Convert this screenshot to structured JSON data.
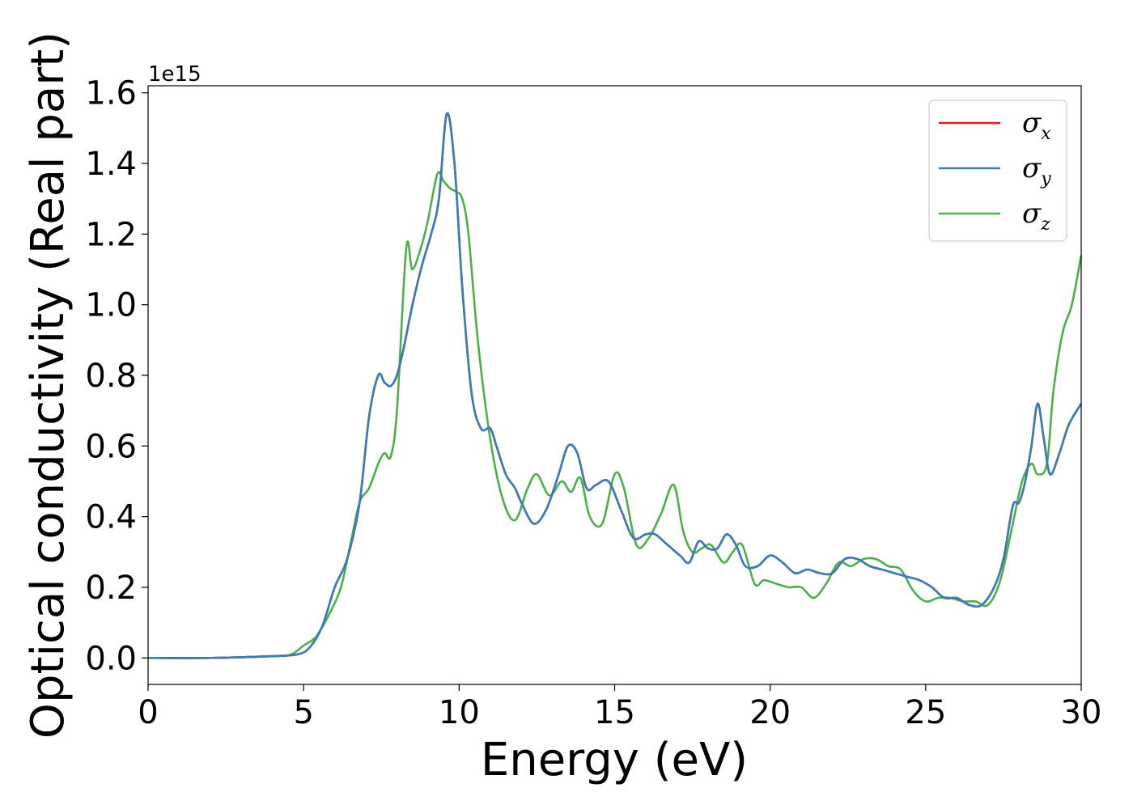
{
  "chart_data": {
    "type": "line",
    "xlabel": "Energy (eV)",
    "ylabel": "Optical conductivity (Real part)",
    "y_offset_text": "1e15",
    "y_multiplier": 1000000000000000.0,
    "xlim": [
      0,
      30
    ],
    "ylim": [
      -0.075,
      1.62
    ],
    "x_ticks": [
      0,
      5,
      10,
      15,
      20,
      25,
      30
    ],
    "x_tick_labels": [
      "0",
      "5",
      "10",
      "15",
      "20",
      "25",
      "30"
    ],
    "y_ticks": [
      0.0,
      0.2,
      0.4,
      0.6,
      0.8,
      1.0,
      1.2,
      1.4,
      1.6
    ],
    "y_tick_labels": [
      "0.0",
      "0.2",
      "0.4",
      "0.6",
      "0.8",
      "1.0",
      "1.2",
      "1.4",
      "1.6"
    ],
    "grid": false,
    "legend_position": "top-right",
    "series": [
      {
        "name": "σx",
        "symbol": "σ",
        "subscript": "x",
        "color": "#e41a1c",
        "x": [
          0,
          2,
          4,
          4.8,
          5.2,
          5.6,
          6.0,
          6.4,
          6.8,
          7.1,
          7.4,
          7.6,
          7.8,
          8.0,
          8.2,
          8.5,
          8.8,
          9.1,
          9.35,
          9.6,
          9.85,
          10.1,
          10.4,
          10.7,
          11.0,
          11.2,
          11.5,
          11.8,
          12.0,
          12.4,
          12.8,
          13.2,
          13.5,
          13.8,
          14.1,
          14.4,
          14.8,
          15.2,
          15.6,
          16.0,
          16.3,
          16.7,
          17.1,
          17.4,
          17.7,
          18.0,
          18.3,
          18.6,
          18.9,
          19.2,
          19.6,
          20.0,
          20.4,
          20.8,
          21.2,
          21.6,
          22.0,
          22.4,
          22.8,
          23.2,
          23.6,
          24.0,
          24.4,
          24.8,
          25.2,
          25.6,
          26.0,
          26.4,
          26.8,
          27.2,
          27.5,
          27.8,
          28.0,
          28.2,
          28.4,
          28.6,
          28.8,
          29.0,
          29.3,
          29.6,
          30.0
        ],
        "y": [
          0.0,
          0.0,
          0.005,
          0.01,
          0.03,
          0.09,
          0.2,
          0.28,
          0.44,
          0.68,
          0.8,
          0.78,
          0.77,
          0.8,
          0.87,
          1.0,
          1.11,
          1.2,
          1.3,
          1.54,
          1.4,
          1.05,
          0.75,
          0.65,
          0.65,
          0.6,
          0.52,
          0.48,
          0.44,
          0.38,
          0.42,
          0.52,
          0.6,
          0.58,
          0.48,
          0.49,
          0.5,
          0.42,
          0.34,
          0.35,
          0.35,
          0.32,
          0.29,
          0.27,
          0.33,
          0.31,
          0.31,
          0.35,
          0.32,
          0.26,
          0.26,
          0.29,
          0.27,
          0.24,
          0.25,
          0.24,
          0.24,
          0.28,
          0.28,
          0.26,
          0.25,
          0.24,
          0.23,
          0.22,
          0.2,
          0.17,
          0.17,
          0.15,
          0.15,
          0.2,
          0.28,
          0.43,
          0.44,
          0.5,
          0.6,
          0.72,
          0.62,
          0.52,
          0.58,
          0.66,
          0.72
        ]
      },
      {
        "name": "σy",
        "symbol": "σ",
        "subscript": "y",
        "color": "#377eb8",
        "x": [
          0,
          2,
          4,
          4.8,
          5.2,
          5.6,
          6.0,
          6.4,
          6.8,
          7.1,
          7.4,
          7.6,
          7.8,
          8.0,
          8.2,
          8.5,
          8.8,
          9.1,
          9.35,
          9.6,
          9.85,
          10.1,
          10.4,
          10.7,
          11.0,
          11.2,
          11.5,
          11.8,
          12.0,
          12.4,
          12.8,
          13.2,
          13.5,
          13.8,
          14.1,
          14.4,
          14.8,
          15.2,
          15.6,
          16.0,
          16.3,
          16.7,
          17.1,
          17.4,
          17.7,
          18.0,
          18.3,
          18.6,
          18.9,
          19.2,
          19.6,
          20.0,
          20.4,
          20.8,
          21.2,
          21.6,
          22.0,
          22.4,
          22.8,
          23.2,
          23.6,
          24.0,
          24.4,
          24.8,
          25.2,
          25.6,
          26.0,
          26.4,
          26.8,
          27.2,
          27.5,
          27.8,
          28.0,
          28.2,
          28.4,
          28.6,
          28.8,
          29.0,
          29.3,
          29.6,
          30.0
        ],
        "y": [
          0.0,
          0.0,
          0.005,
          0.01,
          0.03,
          0.09,
          0.2,
          0.28,
          0.44,
          0.68,
          0.8,
          0.78,
          0.77,
          0.8,
          0.87,
          1.0,
          1.11,
          1.2,
          1.3,
          1.54,
          1.4,
          1.05,
          0.75,
          0.65,
          0.65,
          0.6,
          0.52,
          0.48,
          0.44,
          0.38,
          0.42,
          0.52,
          0.6,
          0.58,
          0.48,
          0.49,
          0.5,
          0.42,
          0.34,
          0.35,
          0.35,
          0.32,
          0.29,
          0.27,
          0.33,
          0.31,
          0.31,
          0.35,
          0.32,
          0.26,
          0.26,
          0.29,
          0.27,
          0.24,
          0.25,
          0.24,
          0.24,
          0.28,
          0.28,
          0.26,
          0.25,
          0.24,
          0.23,
          0.22,
          0.2,
          0.17,
          0.17,
          0.15,
          0.15,
          0.2,
          0.28,
          0.43,
          0.44,
          0.5,
          0.6,
          0.72,
          0.62,
          0.52,
          0.58,
          0.66,
          0.72
        ]
      },
      {
        "name": "σz",
        "symbol": "σ",
        "subscript": "z",
        "color": "#4daf4a",
        "x": [
          0,
          2,
          4,
          4.6,
          5.0,
          5.4,
          5.8,
          6.2,
          6.5,
          6.8,
          7.1,
          7.4,
          7.6,
          7.8,
          8.0,
          8.3,
          8.5,
          8.8,
          9.0,
          9.3,
          9.5,
          9.7,
          9.9,
          10.1,
          10.3,
          10.6,
          11.0,
          11.4,
          11.8,
          12.2,
          12.5,
          12.9,
          13.3,
          13.6,
          13.9,
          14.2,
          14.6,
          15.0,
          15.3,
          15.7,
          16.1,
          16.5,
          16.9,
          17.2,
          17.5,
          17.8,
          18.1,
          18.5,
          18.8,
          19.1,
          19.5,
          19.8,
          20.2,
          20.6,
          21.0,
          21.4,
          21.8,
          22.2,
          22.6,
          23.0,
          23.4,
          23.8,
          24.2,
          24.6,
          25.0,
          25.4,
          25.8,
          26.2,
          26.6,
          27.0,
          27.4,
          27.8,
          28.1,
          28.4,
          28.6,
          28.9,
          29.1,
          29.4,
          29.7,
          30.0
        ],
        "y": [
          0.0,
          0.0,
          0.005,
          0.01,
          0.035,
          0.06,
          0.12,
          0.2,
          0.32,
          0.44,
          0.48,
          0.55,
          0.58,
          0.57,
          0.7,
          1.16,
          1.1,
          1.17,
          1.24,
          1.37,
          1.35,
          1.33,
          1.32,
          1.3,
          1.2,
          0.9,
          0.62,
          0.45,
          0.39,
          0.48,
          0.52,
          0.46,
          0.5,
          0.47,
          0.51,
          0.4,
          0.38,
          0.52,
          0.48,
          0.32,
          0.34,
          0.41,
          0.49,
          0.36,
          0.3,
          0.31,
          0.32,
          0.27,
          0.3,
          0.32,
          0.21,
          0.22,
          0.21,
          0.2,
          0.2,
          0.17,
          0.21,
          0.27,
          0.26,
          0.28,
          0.28,
          0.26,
          0.25,
          0.19,
          0.16,
          0.17,
          0.17,
          0.16,
          0.16,
          0.15,
          0.22,
          0.38,
          0.5,
          0.55,
          0.52,
          0.55,
          0.75,
          0.92,
          1.0,
          1.14
        ]
      }
    ]
  }
}
